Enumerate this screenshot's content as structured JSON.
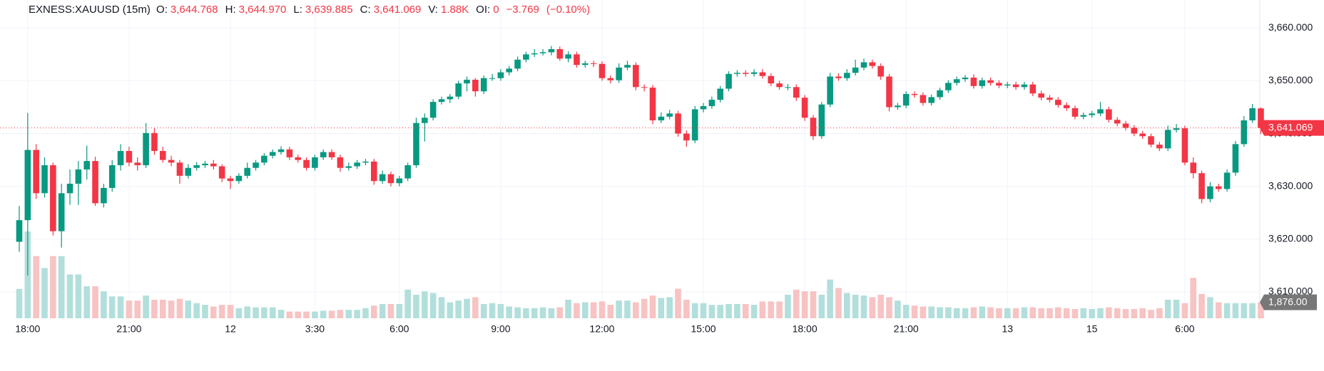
{
  "header": {
    "symbol": "EXNESS:XAUUSD (15m)",
    "fields": [
      {
        "label": "O:",
        "value": "3,644.768"
      },
      {
        "label": "H:",
        "value": "3,644.970"
      },
      {
        "label": "L:",
        "value": "3,639.885"
      },
      {
        "label": "C:",
        "value": "3,641.069"
      },
      {
        "label": "V:",
        "value": "1.88K"
      },
      {
        "label": "OI:",
        "value": "0"
      }
    ],
    "change": "−3.769",
    "change_pct": "(−0.10%)"
  },
  "chart_data": {
    "type": "candlestick",
    "up_color": "#089981",
    "down_color": "#f23645",
    "up_volume_color": "#b2dfdb",
    "down_volume_color": "#f7c3c3",
    "ylim": [
      3665.3,
      3604.6
    ],
    "yticks": [
      {
        "value": 3660,
        "label": "3,660.000"
      },
      {
        "value": 3650,
        "label": "3,650.000"
      },
      {
        "value": 3640,
        "label": "3,640.000"
      },
      {
        "value": 3630,
        "label": "3,630.000"
      },
      {
        "value": 3620,
        "label": "3,620.000"
      },
      {
        "value": 3610,
        "label": "3,610.000"
      }
    ],
    "grid": true,
    "last_price_label": "3,641.069",
    "last_volume_label": "1,876.00",
    "categories": [
      null,
      "18:00",
      null,
      null,
      null,
      null,
      null,
      null,
      null,
      null,
      null,
      null,
      null,
      "21:00",
      null,
      null,
      null,
      null,
      null,
      null,
      null,
      null,
      null,
      null,
      null,
      "12",
      null,
      null,
      null,
      null,
      null,
      null,
      null,
      null,
      null,
      "3:30",
      null,
      null,
      null,
      null,
      null,
      null,
      null,
      null,
      null,
      "6:00",
      null,
      null,
      null,
      null,
      null,
      null,
      null,
      null,
      null,
      null,
      null,
      "9:00",
      null,
      null,
      null,
      null,
      null,
      null,
      null,
      null,
      null,
      null,
      null,
      "12:00",
      null,
      null,
      null,
      null,
      null,
      null,
      null,
      null,
      null,
      null,
      null,
      "15:00",
      null,
      null,
      null,
      null,
      null,
      null,
      null,
      null,
      null,
      null,
      null,
      "18:00",
      null,
      null,
      null,
      null,
      null,
      null,
      null,
      null,
      null,
      null,
      null,
      "21:00",
      null,
      null,
      null,
      null,
      null,
      null,
      null,
      null,
      null,
      null,
      null,
      "13",
      null,
      null,
      null,
      null,
      null,
      null,
      null,
      null,
      null,
      "15",
      null,
      null,
      null,
      null,
      null,
      null,
      null,
      null,
      null,
      null,
      "6:00",
      null,
      null,
      null,
      null,
      null,
      null,
      null,
      null,
      null
    ],
    "open": [
      3619.5,
      3623.6,
      3636.9,
      3628.7,
      3634.0,
      3621.5,
      3628.7,
      3630.5,
      3633.2,
      3634.8,
      3626.8,
      3629.7,
      3634.0,
      3636.7,
      3634.5,
      3634.0,
      3640.1,
      3636.7,
      3635.0,
      3634.5,
      3632.0,
      3633.5,
      3634.0,
      3634.3,
      3633.8,
      3631.5,
      3631.0,
      3632.0,
      3633.5,
      3634.5,
      3635.8,
      3636.5,
      3637.0,
      3635.5,
      3635.0,
      3633.5,
      3635.5,
      3636.5,
      3635.5,
      3633.5,
      3633.8,
      3634.5,
      3634.7,
      3631.0,
      3632.3,
      3630.6,
      3631.5,
      3634.0,
      3642.0,
      3643.0,
      3646.0,
      3646.5,
      3647.0,
      3649.5,
      3650.2,
      3648.0,
      3650.5,
      3650.5,
      3651.6,
      3652.3,
      3654.0,
      3655.0,
      3655.2,
      3655.4,
      3656.0,
      3654.2,
      3655.0,
      3653.0,
      3653.3,
      3653.2,
      3650.5,
      3650.1,
      3652.5,
      3653.0,
      3648.8,
      3648.7,
      3642.5,
      3643.2,
      3643.8,
      3640.0,
      3638.7,
      3644.6,
      3645.2,
      3646.4,
      3648.5,
      3651.3,
      3651.5,
      3651.3,
      3651.6,
      3650.9,
      3649.5,
      3648.8,
      3648.8,
      3646.8,
      3643.0,
      3639.5,
      3645.5,
      3650.8,
      3650.5,
      3651.5,
      3652.5,
      3653.5,
      3652.8,
      3650.8,
      3645.0,
      3645.3,
      3647.5,
      3647.3,
      3645.8,
      3646.9,
      3648.2,
      3649.6,
      3650.3,
      3650.6,
      3649.0,
      3650.1,
      3649.6,
      3649.1,
      3649.3,
      3648.8,
      3649.3,
      3647.6,
      3646.8,
      3646.4,
      3645.4,
      3644.8,
      3643.2,
      3643.5,
      3643.8,
      3644.6,
      3642.6,
      3641.9,
      3641.1,
      3640.0,
      3639.5,
      3637.9,
      3637.2,
      3640.7,
      3641.0,
      3634.5,
      3632.5,
      3627.6,
      3630.0,
      3629.5,
      3632.6,
      3638.0,
      3642.5,
      3644.768
    ],
    "high": [
      3626.3,
      3643.9,
      3638.0,
      3635.5,
      3634.5,
      3630.5,
      3633.2,
      3634.8,
      3637.7,
      3635.6,
      3630.5,
      3635.0,
      3638.0,
      3637.5,
      3635.5,
      3642.0,
      3641.0,
      3637.5,
      3635.8,
      3635.0,
      3634.2,
      3634.6,
      3634.8,
      3635.0,
      3634.2,
      3632.0,
      3632.5,
      3634.5,
      3635.0,
      3636.3,
      3637.0,
      3637.6,
      3637.5,
      3636.0,
      3635.5,
      3636.0,
      3637.0,
      3637.0,
      3636.0,
      3634.5,
      3635.0,
      3635.2,
      3635.2,
      3633.0,
      3632.8,
      3632.0,
      3634.5,
      3643.0,
      3643.8,
      3646.5,
      3647.0,
      3647.5,
      3650.0,
      3650.8,
      3650.5,
      3651.0,
      3651.3,
      3652.2,
      3652.8,
      3654.6,
      3655.5,
      3656.0,
      3656.0,
      3656.6,
      3656.5,
      3655.6,
      3655.5,
      3653.8,
      3653.8,
      3653.7,
      3651.0,
      3653.3,
      3653.8,
      3653.5,
      3649.3,
      3649.2,
      3644.0,
      3644.5,
      3644.3,
      3640.6,
      3645.2,
      3645.8,
      3647.0,
      3649.0,
      3651.8,
      3652.0,
      3652.0,
      3652.2,
      3652.2,
      3651.4,
      3650.0,
      3649.4,
      3649.3,
      3647.3,
      3643.5,
      3646.0,
      3651.5,
      3651.4,
      3652.2,
      3654.0,
      3654.2,
      3654.0,
      3653.3,
      3651.3,
      3645.8,
      3648.0,
      3648.0,
      3647.8,
      3647.4,
      3648.7,
      3650.1,
      3650.8,
      3651.1,
      3651.2,
      3650.6,
      3650.6,
      3650.1,
      3649.8,
      3649.8,
      3649.8,
      3649.8,
      3648.1,
      3647.3,
      3646.9,
      3645.9,
      3645.3,
      3644.0,
      3644.3,
      3646.0,
      3645.1,
      3643.1,
      3642.4,
      3641.6,
      3640.5,
      3640.0,
      3638.4,
      3641.5,
      3641.8,
      3641.5,
      3635.5,
      3633.0,
      3630.8,
      3630.5,
      3633.2,
      3638.6,
      3643.3,
      3645.6,
      3644.97
    ],
    "low": [
      3617.6,
      3613.1,
      3627.6,
      3627.9,
      3620.7,
      3618.4,
      3626.5,
      3626.5,
      3631.3,
      3626.3,
      3626.0,
      3629.0,
      3633.0,
      3633.8,
      3633.0,
      3633.5,
      3636.0,
      3634.5,
      3633.8,
      3630.5,
      3631.5,
      3633.0,
      3633.5,
      3633.2,
      3630.8,
      3629.5,
      3630.5,
      3631.5,
      3633.0,
      3634.0,
      3635.3,
      3636.0,
      3635.0,
      3634.5,
      3633.0,
      3633.0,
      3635.0,
      3635.0,
      3632.8,
      3633.0,
      3633.3,
      3634.0,
      3630.3,
      3630.5,
      3630.0,
      3630.0,
      3631.0,
      3633.5,
      3638.5,
      3642.5,
      3645.5,
      3645.8,
      3646.5,
      3648.0,
      3647.0,
      3647.5,
      3650.0,
      3650.0,
      3651.0,
      3651.8,
      3653.5,
      3654.5,
      3654.8,
      3654.8,
      3653.8,
      3653.5,
      3652.5,
      3652.5,
      3652.6,
      3650.0,
      3649.5,
      3649.6,
      3652.0,
      3648.2,
      3648.0,
      3641.8,
      3642.0,
      3642.7,
      3639.4,
      3637.5,
      3638.2,
      3644.0,
      3644.7,
      3645.9,
      3648.0,
      3650.8,
      3650.8,
      3650.8,
      3650.4,
      3649.0,
      3648.3,
      3648.2,
      3646.2,
      3642.4,
      3638.8,
      3639.0,
      3645.0,
      3650.0,
      3650.0,
      3651.0,
      3652.0,
      3652.3,
      3650.2,
      3644.2,
      3644.5,
      3644.8,
      3646.8,
      3645.3,
      3645.3,
      3646.4,
      3647.7,
      3649.1,
      3649.8,
      3648.5,
      3648.5,
      3649.1,
      3648.6,
      3648.6,
      3648.3,
      3648.3,
      3647.1,
      3646.3,
      3645.9,
      3644.9,
      3644.3,
      3642.7,
      3642.7,
      3643.0,
      3643.3,
      3642.1,
      3641.4,
      3640.6,
      3639.5,
      3639.0,
      3637.4,
      3636.7,
      3636.7,
      3640.2,
      3634.0,
      3631.5,
      3626.8,
      3627.0,
      3629.0,
      3629.0,
      3632.0,
      3637.5,
      3642.0,
      3639.885
    ],
    "close": [
      3623.6,
      3636.9,
      3628.7,
      3634.0,
      3621.5,
      3628.7,
      3630.5,
      3633.2,
      3634.8,
      3626.8,
      3629.7,
      3634.0,
      3636.7,
      3634.5,
      3634.0,
      3640.1,
      3636.7,
      3635.0,
      3634.5,
      3632.0,
      3633.5,
      3634.0,
      3634.3,
      3633.8,
      3631.5,
      3631.0,
      3632.0,
      3633.5,
      3634.5,
      3635.8,
      3636.5,
      3637.0,
      3635.5,
      3635.0,
      3633.5,
      3635.5,
      3636.5,
      3635.5,
      3633.5,
      3633.8,
      3634.5,
      3634.7,
      3631.0,
      3632.3,
      3630.6,
      3631.5,
      3634.0,
      3642.0,
      3643.0,
      3646.0,
      3646.5,
      3647.0,
      3649.5,
      3650.2,
      3648.0,
      3650.5,
      3650.5,
      3651.6,
      3652.3,
      3654.0,
      3655.0,
      3655.2,
      3655.4,
      3656.0,
      3654.2,
      3655.0,
      3653.0,
      3653.3,
      3653.2,
      3650.5,
      3650.1,
      3652.5,
      3653.0,
      3648.8,
      3648.7,
      3642.5,
      3643.2,
      3643.8,
      3640.0,
      3638.7,
      3644.6,
      3645.2,
      3646.4,
      3648.5,
      3651.3,
      3651.5,
      3651.3,
      3651.6,
      3650.9,
      3649.5,
      3648.8,
      3648.8,
      3646.8,
      3643.0,
      3639.5,
      3645.5,
      3650.8,
      3650.5,
      3651.5,
      3652.5,
      3653.5,
      3652.8,
      3650.8,
      3645.0,
      3645.3,
      3647.5,
      3647.3,
      3645.8,
      3646.9,
      3648.2,
      3649.6,
      3650.3,
      3650.6,
      3649.0,
      3650.1,
      3649.6,
      3649.1,
      3649.3,
      3648.8,
      3649.3,
      3647.6,
      3646.8,
      3646.4,
      3645.4,
      3644.8,
      3643.2,
      3643.5,
      3643.8,
      3644.6,
      3642.6,
      3641.9,
      3641.1,
      3640.0,
      3639.5,
      3637.9,
      3637.2,
      3640.7,
      3641.0,
      3634.5,
      3632.5,
      3627.6,
      3630.0,
      3629.5,
      3632.6,
      3638.0,
      3642.5,
      3644.8,
      3641.069
    ],
    "volume": [
      3450,
      10200,
      7300,
      5900,
      7300,
      7300,
      5150,
      5150,
      3760,
      3760,
      3170,
      2570,
      2570,
      2080,
      2080,
      2670,
      2180,
      2180,
      2080,
      2280,
      2080,
      1780,
      1580,
      1390,
      1580,
      1580,
      1190,
      1390,
      1290,
      1290,
      1290,
      990,
      790,
      790,
      790,
      790,
      890,
      890,
      990,
      990,
      990,
      1190,
      1490,
      1680,
      1680,
      1680,
      3370,
      2770,
      3170,
      2970,
      2480,
      1880,
      2080,
      2280,
      2480,
      1680,
      1780,
      1680,
      1390,
      1290,
      1190,
      1190,
      1290,
      1190,
      1290,
      2180,
      1780,
      1880,
      1880,
      1980,
      1580,
      2080,
      2080,
      1880,
      2280,
      2670,
      2380,
      2480,
      3470,
      2180,
      1780,
      1780,
      1580,
      1580,
      1680,
      1680,
      1680,
      1580,
      1980,
      1980,
      1980,
      2770,
      3370,
      3170,
      3170,
      2770,
      4550,
      3560,
      2970,
      2770,
      2670,
      2480,
      2770,
      2480,
      2080,
      1580,
      1490,
      1390,
      1390,
      1290,
      1290,
      1190,
      1190,
      1290,
      1390,
      1290,
      1190,
      1190,
      1190,
      1290,
      1290,
      1190,
      1190,
      1290,
      1190,
      1090,
      1190,
      1090,
      1190,
      1290,
      1190,
      1090,
      1090,
      1190,
      990,
      1190,
      2180,
      2180,
      1780,
      4750,
      2870,
      2480,
      1880,
      1780,
      1780,
      1780,
      1780,
      1876
    ]
  }
}
